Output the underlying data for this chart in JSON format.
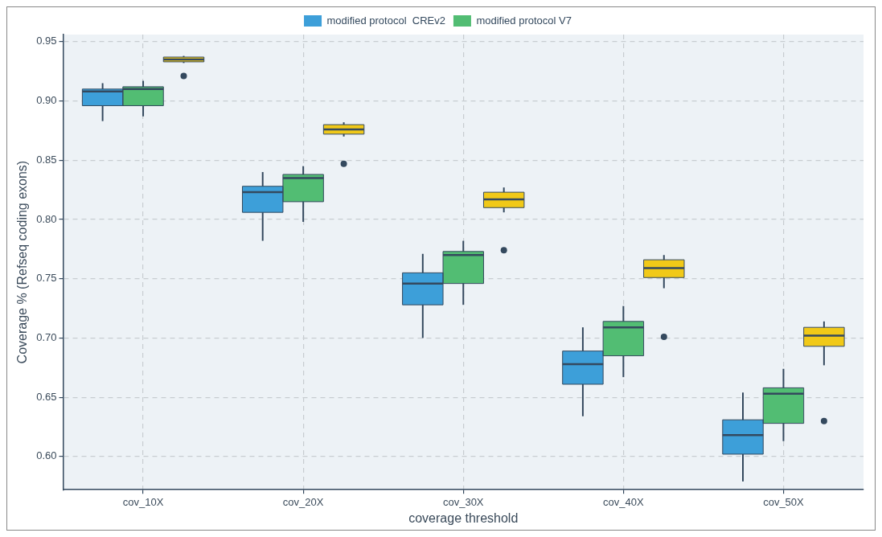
{
  "chart_data": {
    "type": "box",
    "xlabel": "coverage threshold",
    "ylabel": "Coverage % (Refseq coding exons)",
    "categories": [
      "cov_10X",
      "cov_20X",
      "cov_30X",
      "cov_40X",
      "cov_50X"
    ],
    "ylim": [
      0.572,
      0.956
    ],
    "yticks": [
      {
        "value": 0.6,
        "label": "0.60"
      },
      {
        "value": 0.65,
        "label": "0.65"
      },
      {
        "value": 0.7,
        "label": "0.70"
      },
      {
        "value": 0.75,
        "label": "0.75"
      },
      {
        "value": 0.8,
        "label": "0.80"
      },
      {
        "value": 0.85,
        "label": "0.85"
      },
      {
        "value": 0.9,
        "label": "0.90"
      },
      {
        "value": 0.95,
        "label": "0.95"
      }
    ],
    "grid": true,
    "legend": "top",
    "series": [
      {
        "name": "modified protocol  CREv2",
        "color": "#3d9fd9",
        "boxes": [
          {
            "low": 0.883,
            "q1": 0.896,
            "median": 0.908,
            "q3": 0.91,
            "high": 0.915
          },
          {
            "low": 0.782,
            "q1": 0.806,
            "median": 0.823,
            "q3": 0.828,
            "high": 0.84
          },
          {
            "low": 0.7,
            "q1": 0.728,
            "median": 0.746,
            "q3": 0.755,
            "high": 0.771
          },
          {
            "low": 0.634,
            "q1": 0.661,
            "median": 0.678,
            "q3": 0.689,
            "high": 0.709
          },
          {
            "low": 0.579,
            "q1": 0.602,
            "median": 0.618,
            "q3": 0.631,
            "high": 0.654
          }
        ]
      },
      {
        "name": "modified protocol V7",
        "color": "#52bd73",
        "boxes": [
          {
            "low": 0.887,
            "q1": 0.896,
            "median": 0.91,
            "q3": 0.912,
            "high": 0.917
          },
          {
            "low": 0.798,
            "q1": 0.815,
            "median": 0.835,
            "q3": 0.838,
            "high": 0.845
          },
          {
            "low": 0.728,
            "q1": 0.746,
            "median": 0.77,
            "q3": 0.773,
            "high": 0.782
          },
          {
            "low": 0.667,
            "q1": 0.685,
            "median": 0.709,
            "q3": 0.714,
            "high": 0.727
          },
          {
            "low": 0.613,
            "q1": 0.628,
            "median": 0.653,
            "q3": 0.658,
            "high": 0.674
          }
        ]
      },
      {
        "color": "#f1c918",
        "boxes": [
          {
            "low": 0.932,
            "q1": 0.933,
            "median": 0.935,
            "q3": 0.937,
            "high": 0.938,
            "outliers": [
              0.921
            ]
          },
          {
            "low": 0.87,
            "q1": 0.872,
            "median": 0.876,
            "q3": 0.88,
            "high": 0.882,
            "outliers": [
              0.847
            ]
          },
          {
            "low": 0.806,
            "q1": 0.81,
            "median": 0.817,
            "q3": 0.823,
            "high": 0.827,
            "outliers": [
              0.774
            ]
          },
          {
            "low": 0.742,
            "q1": 0.751,
            "median": 0.759,
            "q3": 0.766,
            "high": 0.77,
            "outliers": [
              0.701
            ]
          },
          {
            "low": 0.677,
            "q1": 0.693,
            "median": 0.702,
            "q3": 0.709,
            "high": 0.714,
            "outliers": [
              0.63
            ]
          }
        ]
      }
    ]
  }
}
